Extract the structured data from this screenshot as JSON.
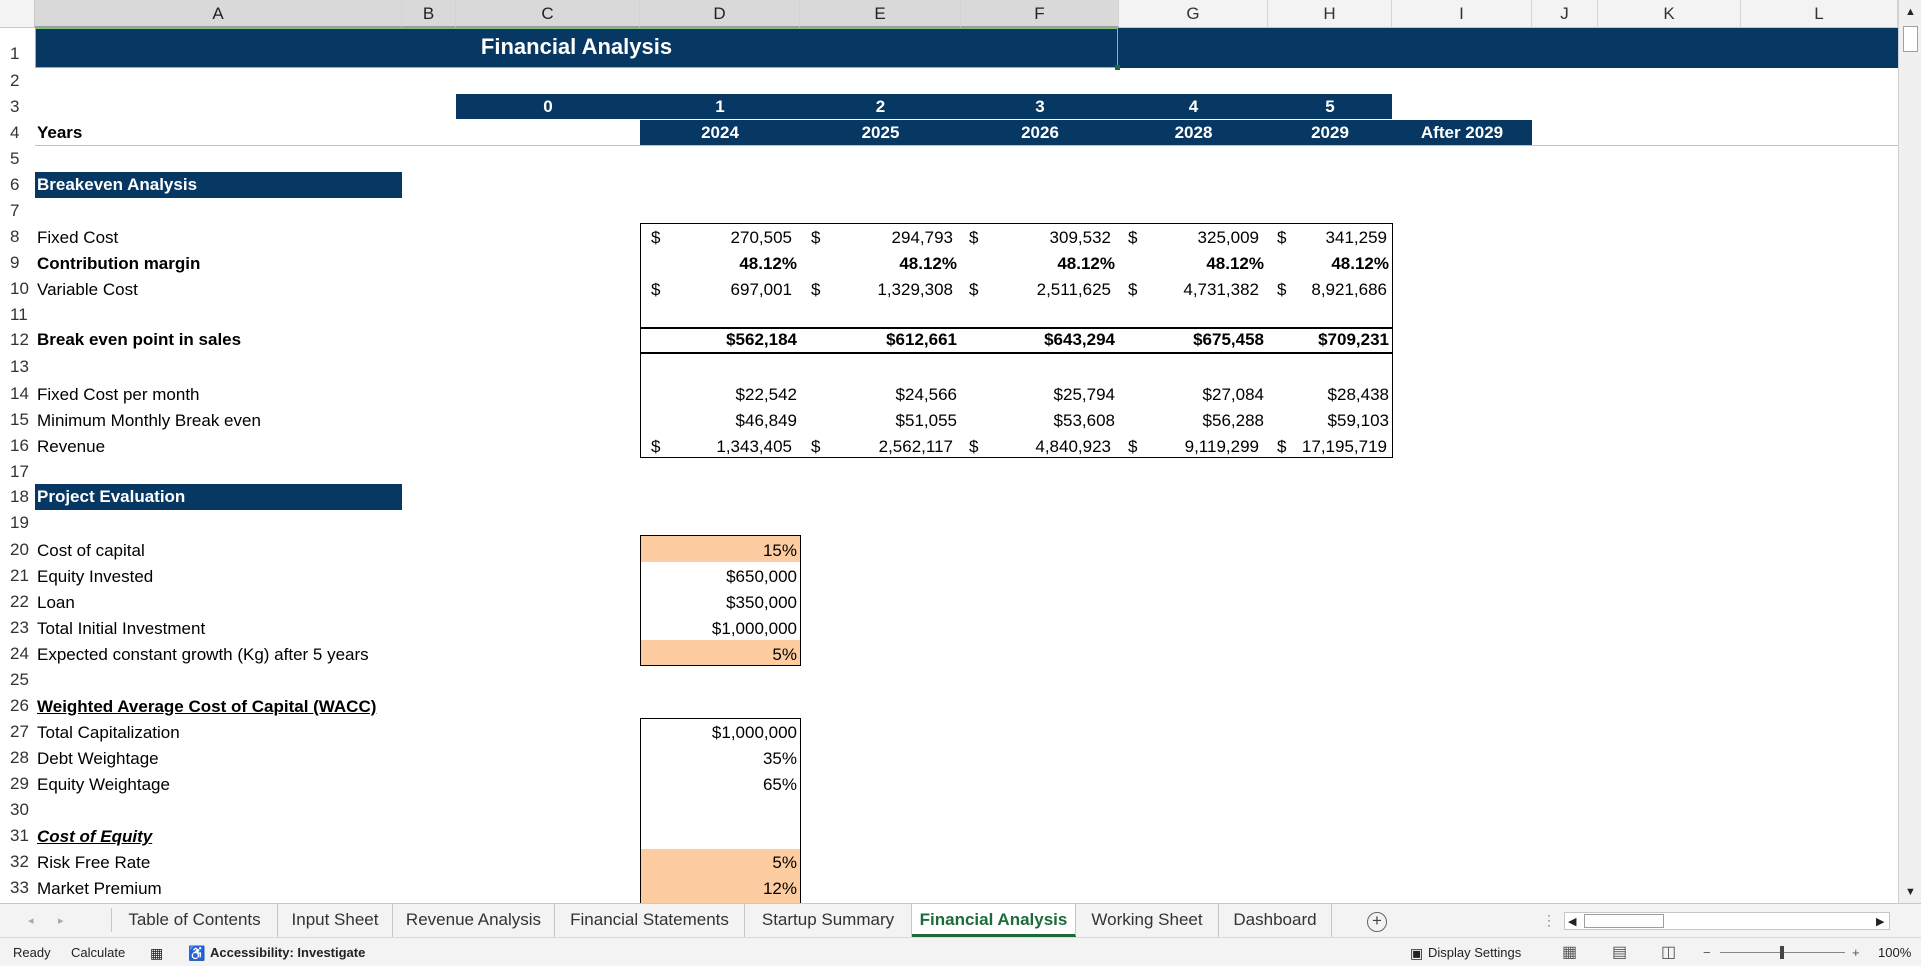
{
  "columns": [
    "A",
    "B",
    "C",
    "D",
    "E",
    "F",
    "G",
    "H",
    "I",
    "J",
    "K",
    "L"
  ],
  "rows": [
    "1",
    "2",
    "3",
    "4",
    "5",
    "6",
    "7",
    "8",
    "9",
    "10",
    "11",
    "12",
    "13",
    "14",
    "15",
    "16",
    "17",
    "18",
    "19",
    "20",
    "21",
    "22",
    "23",
    "24",
    "25",
    "26",
    "27",
    "28",
    "29",
    "30",
    "31",
    "32",
    "33"
  ],
  "title": "Financial Analysis",
  "periods": [
    "0",
    "1",
    "2",
    "3",
    "4",
    "5"
  ],
  "years_label": "Years",
  "years": [
    "2024",
    "2025",
    "2026",
    "2028",
    "2029",
    "After 2029"
  ],
  "breakeven": {
    "header": "Breakeven Analysis",
    "fixed_cost_label": "Fixed Cost",
    "fixed_cost": [
      "270,505",
      "294,793",
      "309,532",
      "325,009",
      "341,259"
    ],
    "contribution_label": "Contribution margin",
    "contribution": [
      "48.12%",
      "48.12%",
      "48.12%",
      "48.12%",
      "48.12%"
    ],
    "variable_cost_label": "Variable Cost",
    "variable_cost": [
      "697,001",
      "1,329,308",
      "2,511,625",
      "4,731,382",
      "8,921,686"
    ],
    "break_even_label": "Break even point in sales",
    "break_even": [
      "$562,184",
      "$612,661",
      "$643,294",
      "$675,458",
      "$709,231"
    ],
    "fixed_month_label": "Fixed Cost per month",
    "fixed_month": [
      "$22,542",
      "$24,566",
      "$25,794",
      "$27,084",
      "$28,438"
    ],
    "min_monthly_label": "Minimum Monthly Break even",
    "min_monthly": [
      "$46,849",
      "$51,055",
      "$53,608",
      "$56,288",
      "$59,103"
    ],
    "revenue_label": "Revenue",
    "revenue": [
      "1,343,405",
      "2,562,117",
      "4,840,923",
      "9,119,299",
      "17,195,719"
    ],
    "dollar": "$"
  },
  "project": {
    "header": "Project Evaluation",
    "items": [
      {
        "label": "Cost of capital",
        "value": "15%"
      },
      {
        "label": "Equity Invested",
        "value": "$650,000"
      },
      {
        "label": "Loan",
        "value": "$350,000"
      },
      {
        "label": "Total Initial Investment",
        "value": "$1,000,000"
      },
      {
        "label": "Expected constant growth (Kg) after 5 years",
        "value": "5%"
      }
    ]
  },
  "wacc": {
    "header": "Weighted Average Cost of Capital (WACC)",
    "items": [
      {
        "label": "Total Capitalization",
        "value": "$1,000,000"
      },
      {
        "label": "Debt Weightage",
        "value": "35%"
      },
      {
        "label": "Equity Weightage",
        "value": "65%"
      }
    ]
  },
  "equity": {
    "header": "Cost of Equity",
    "items": [
      {
        "label": "Risk Free Rate",
        "value": "5%"
      },
      {
        "label": "Market Premium",
        "value": "12%"
      }
    ]
  },
  "tabs": [
    "Table of Contents",
    "Input Sheet",
    "Revenue Analysis",
    "Financial Statements",
    "Startup Summary",
    "Financial Analysis",
    "Working Sheet",
    "Dashboard"
  ],
  "status": {
    "ready": "Ready",
    "calculate": "Calculate",
    "accessibility": "Accessibility: Investigate",
    "display_settings": "Display Settings",
    "zoom": "100%"
  },
  "colors": {
    "banner": "#073763",
    "input_fill": "#fdcca0",
    "active_tab": "#1e6b3a"
  }
}
